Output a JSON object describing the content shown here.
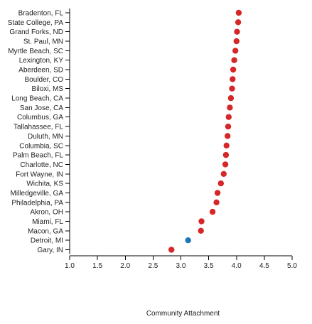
{
  "chart_data": {
    "type": "scatter",
    "xlabel": "Community Attachment",
    "xlim": [
      1.0,
      5.0
    ],
    "x_ticks": [
      "1.0",
      "1.5",
      "2.0",
      "2.5",
      "3.0",
      "3.5",
      "4.0",
      "4.5",
      "5.0"
    ],
    "default_color": "#d62728",
    "highlight_color": "#1f77b4",
    "points": [
      {
        "city": "Bradenton, FL",
        "x": 4.04,
        "highlight": false
      },
      {
        "city": "State College, PA",
        "x": 4.03,
        "highlight": false
      },
      {
        "city": "Grand Forks, ND",
        "x": 4.01,
        "highlight": false
      },
      {
        "city": "St. Paul, MN",
        "x": 4.0,
        "highlight": false
      },
      {
        "city": "Myrtle Beach, SC",
        "x": 3.98,
        "highlight": false
      },
      {
        "city": "Lexington, KY",
        "x": 3.96,
        "highlight": false
      },
      {
        "city": "Aberdeen, SD",
        "x": 3.94,
        "highlight": false
      },
      {
        "city": "Boulder, CO",
        "x": 3.93,
        "highlight": false
      },
      {
        "city": "Biloxi, MS",
        "x": 3.92,
        "highlight": false
      },
      {
        "city": "Long Beach, CA",
        "x": 3.9,
        "highlight": false
      },
      {
        "city": "San Jose, CA",
        "x": 3.88,
        "highlight": false
      },
      {
        "city": "Columbus, GA",
        "x": 3.86,
        "highlight": false
      },
      {
        "city": "Tallahassee, FL",
        "x": 3.85,
        "highlight": false
      },
      {
        "city": "Duluth, MN",
        "x": 3.84,
        "highlight": false
      },
      {
        "city": "Columbia, SC",
        "x": 3.82,
        "highlight": false
      },
      {
        "city": "Palm Beach, FL",
        "x": 3.81,
        "highlight": false
      },
      {
        "city": "Charlotte, NC",
        "x": 3.8,
        "highlight": false
      },
      {
        "city": "Fort Wayne, IN",
        "x": 3.77,
        "highlight": false
      },
      {
        "city": "Wichita, KS",
        "x": 3.72,
        "highlight": false
      },
      {
        "city": "Milledgeville, GA",
        "x": 3.66,
        "highlight": false
      },
      {
        "city": "Philadelphia, PA",
        "x": 3.64,
        "highlight": false
      },
      {
        "city": "Akron, OH",
        "x": 3.57,
        "highlight": false
      },
      {
        "city": "Miami, FL",
        "x": 3.37,
        "highlight": false
      },
      {
        "city": "Macon, GA",
        "x": 3.36,
        "highlight": false
      },
      {
        "city": "Detroit, MI",
        "x": 3.13,
        "highlight": true
      },
      {
        "city": "Gary, IN",
        "x": 2.83,
        "highlight": false
      }
    ]
  }
}
